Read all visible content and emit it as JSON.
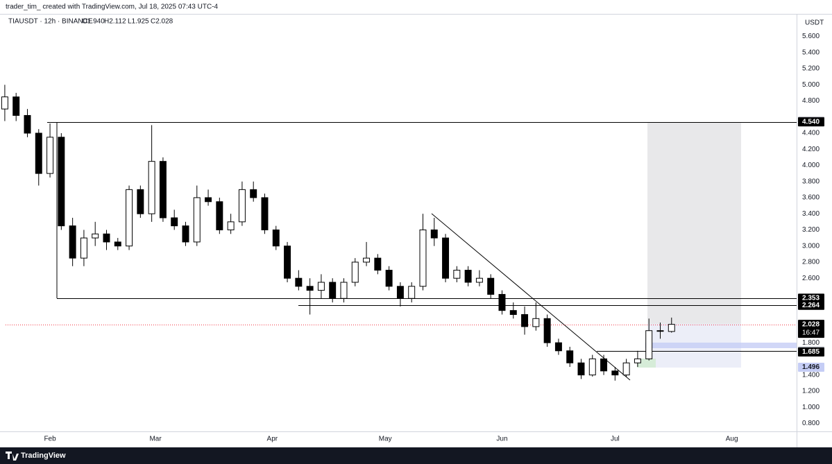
{
  "chart_data": {
    "type": "candlestick",
    "header": "trader_tim_ created with TradingView.com, Jul 18, 2025 07:43 UTC-4",
    "symbol": "TIAUSDT · 12h · BINANCE",
    "ohlc_labels": [
      "O1.940",
      "H2.112",
      "L1.925",
      "C2.028"
    ],
    "currency": "USDT",
    "footer": "TradingView",
    "countdown": "16:47",
    "x": [
      19,
      22,
      25,
      28,
      31,
      34,
      37,
      40,
      43,
      46,
      49,
      52,
      55,
      58,
      61,
      64,
      67,
      70,
      73,
      76,
      79,
      82,
      85,
      88,
      91,
      94,
      97,
      100,
      103,
      106,
      109,
      112,
      115,
      118,
      121,
      124,
      127,
      130,
      133,
      136,
      139,
      142,
      145,
      148,
      151,
      154,
      157,
      160,
      163,
      166,
      169,
      172,
      175,
      178,
      181,
      184,
      187,
      190,
      193,
      196
    ],
    "open": [
      4.7,
      4.85,
      4.62,
      4.4,
      3.9,
      4.35,
      3.25,
      2.85,
      3.1,
      3.15,
      3.05,
      3.0,
      3.7,
      3.4,
      4.05,
      3.35,
      3.25,
      3.05,
      3.6,
      3.55,
      3.2,
      3.3,
      3.7,
      3.6,
      3.2,
      3.0,
      2.6,
      2.5,
      2.45,
      2.55,
      2.35,
      2.55,
      2.8,
      2.85,
      2.7,
      2.5,
      2.35,
      2.5,
      3.2,
      3.1,
      2.6,
      2.7,
      2.55,
      2.6,
      2.4,
      2.2,
      2.15,
      2.0,
      2.1,
      1.8,
      1.7,
      1.55,
      1.4,
      1.6,
      1.45,
      1.4,
      1.55,
      1.6,
      1.95,
      1.94
    ],
    "high": [
      5.0,
      4.9,
      4.7,
      4.45,
      4.52,
      4.4,
      3.35,
      3.2,
      3.3,
      3.2,
      3.1,
      3.75,
      3.75,
      4.5,
      4.1,
      3.45,
      3.3,
      3.75,
      3.7,
      3.6,
      3.4,
      3.8,
      3.8,
      3.65,
      3.25,
      3.05,
      2.7,
      2.6,
      2.65,
      2.6,
      2.6,
      2.85,
      3.05,
      2.9,
      2.75,
      2.55,
      2.55,
      3.4,
      3.35,
      3.15,
      2.75,
      2.75,
      2.7,
      2.65,
      2.45,
      2.3,
      2.25,
      2.3,
      2.15,
      1.85,
      1.75,
      1.6,
      1.65,
      1.65,
      1.5,
      1.6,
      1.7,
      2.1,
      2.05,
      2.112
    ],
    "low": [
      4.55,
      4.55,
      4.35,
      3.75,
      3.85,
      3.2,
      2.75,
      2.75,
      3.0,
      2.95,
      2.95,
      2.95,
      3.35,
      3.3,
      3.3,
      3.2,
      3.0,
      3.0,
      3.5,
      3.15,
      3.15,
      3.25,
      3.55,
      3.15,
      2.95,
      2.55,
      2.45,
      2.15,
      2.35,
      2.3,
      2.3,
      2.5,
      2.75,
      2.65,
      2.45,
      2.25,
      2.3,
      2.45,
      3.0,
      2.55,
      2.55,
      2.5,
      2.5,
      2.35,
      2.15,
      2.1,
      1.9,
      1.95,
      1.75,
      1.65,
      1.5,
      1.35,
      1.38,
      1.4,
      1.33,
      1.38,
      1.5,
      1.58,
      1.85,
      1.925
    ],
    "close": [
      4.85,
      4.62,
      4.4,
      3.9,
      4.35,
      3.25,
      2.85,
      3.1,
      3.15,
      3.05,
      3.0,
      3.7,
      3.4,
      4.05,
      3.35,
      3.25,
      3.05,
      3.6,
      3.55,
      3.2,
      3.3,
      3.7,
      3.6,
      3.2,
      3.0,
      2.6,
      2.5,
      2.45,
      2.55,
      2.35,
      2.55,
      2.8,
      2.85,
      2.7,
      2.5,
      2.35,
      2.5,
      3.2,
      3.1,
      2.6,
      2.7,
      2.55,
      2.6,
      2.4,
      2.2,
      2.15,
      2.0,
      2.1,
      1.8,
      1.7,
      1.55,
      1.4,
      1.6,
      1.45,
      1.4,
      1.55,
      1.6,
      1.95,
      1.95,
      2.028
    ],
    "up_color": "#ffffff",
    "down_color": "#000000",
    "xlim": [
      19.2,
      229.2
    ],
    "xticks": [
      {
        "value": 31,
        "label": "Feb"
      },
      {
        "value": 59,
        "label": "Mar"
      },
      {
        "value": 90,
        "label": "Apr"
      },
      {
        "value": 120,
        "label": "May"
      },
      {
        "value": 151,
        "label": "Jun"
      },
      {
        "value": 181,
        "label": "Jul"
      },
      {
        "value": 212,
        "label": "Aug"
      }
    ],
    "ylim": [
      0.7,
      5.88
    ],
    "yticks": [
      {
        "value": 5.6,
        "label": "5.600"
      },
      {
        "value": 5.4,
        "label": "5.400"
      },
      {
        "value": 5.2,
        "label": "5.200"
      },
      {
        "value": 5.0,
        "label": "5.000"
      },
      {
        "value": 4.8,
        "label": "4.800"
      },
      {
        "value": 4.4,
        "label": "4.400"
      },
      {
        "value": 4.2,
        "label": "4.200"
      },
      {
        "value": 4.0,
        "label": "4.000"
      },
      {
        "value": 3.8,
        "label": "3.800"
      },
      {
        "value": 3.6,
        "label": "3.600"
      },
      {
        "value": 3.4,
        "label": "3.400"
      },
      {
        "value": 3.2,
        "label": "3.200"
      },
      {
        "value": 3.0,
        "label": "3.000"
      },
      {
        "value": 2.8,
        "label": "2.800"
      },
      {
        "value": 2.6,
        "label": "2.600"
      },
      {
        "value": 1.8,
        "label": "1.800"
      },
      {
        "value": 1.4,
        "label": "1.400"
      },
      {
        "value": 1.2,
        "label": "1.200"
      },
      {
        "value": 1.0,
        "label": "1.000"
      },
      {
        "value": 0.8,
        "label": "0.800"
      }
    ],
    "grid": false,
    "price_labels": [
      {
        "value": 4.546,
        "color": "#787b86"
      },
      {
        "value": 4.54,
        "label": "4.540",
        "color": "#000000"
      },
      {
        "value": 2.353,
        "color": "#000000"
      },
      {
        "value": 2.264,
        "color": "#000000"
      },
      {
        "value": 2.028,
        "color": "#000000"
      },
      {
        "value": 1.697,
        "color": "#b2b5be"
      },
      {
        "value": 1.685,
        "color": "#000000"
      },
      {
        "value": 1.496,
        "color": "#c5cdf5"
      }
    ]
  }
}
